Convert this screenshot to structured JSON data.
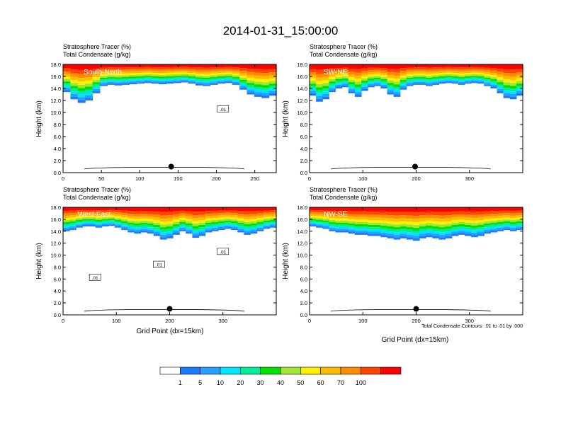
{
  "title": "2014-01-31_15:00:00",
  "colorbar": {
    "colors": [
      "#ffffff",
      "#1e78ff",
      "#28a0ff",
      "#00e5ff",
      "#00ee99",
      "#00e100",
      "#a0e632",
      "#fff000",
      "#fcbc00",
      "#ff8c00",
      "#ff4600",
      "#ff0000"
    ],
    "labels": [
      "1",
      "5",
      "10",
      "20",
      "30",
      "40",
      "50",
      "60",
      "70",
      "100"
    ]
  },
  "contour_note": "Total Condensate Contours: .01 to .01 by .000",
  "chart_data": [
    {
      "type": "heatmap",
      "id": "south-north",
      "header_line1": "Stratosphere Tracer   (%)",
      "header_line2": "Total Condensate   (g/kg)",
      "section_label": "South-North",
      "ylabel": "Height (km)",
      "xlabel": "",
      "xlim": [
        0,
        278
      ],
      "ylim": [
        0,
        18
      ],
      "xticks": [
        0,
        50,
        100,
        150,
        200,
        250
      ],
      "yticks": [
        "0.0",
        "2.0",
        "4.0",
        "6.0",
        "8.0",
        "10.0",
        "12.0",
        "14.0",
        "16.0",
        "18.0"
      ],
      "tracer_base_km": [
        13.4,
        12.2,
        11.6,
        12.0,
        13.2,
        14.4,
        14.6,
        14.5,
        14.6,
        14.7,
        14.8,
        14.9,
        14.8,
        14.7,
        14.8,
        14.9,
        15.0,
        14.8,
        14.5,
        14.4,
        14.6,
        14.8,
        14.9,
        14.6,
        13.8,
        13.0,
        12.6,
        12.4,
        12.8
      ],
      "contour_labels": [
        ".01"
      ],
      "marker": {
        "x": 141,
        "y": 1.0
      }
    },
    {
      "type": "heatmap",
      "id": "sw-ne",
      "header_line1": "Stratosphere Tracer   (%)",
      "header_line2": "Total Condensate   (g/kg)",
      "section_label": "SW-NE",
      "ylabel": "Height (km)",
      "xlabel": "",
      "xlim": [
        0,
        400
      ],
      "ylim": [
        0,
        18
      ],
      "xticks": [
        0,
        100,
        200,
        300
      ],
      "yticks": [
        "0.0",
        "2.0",
        "4.0",
        "6.0",
        "8.0",
        "10.0",
        "12.0",
        "14.0",
        "16.0",
        "18.0"
      ],
      "tracer_base_km": [
        12.8,
        11.8,
        12.2,
        13.4,
        14.0,
        14.2,
        13.2,
        12.6,
        13.6,
        14.2,
        14.4,
        14.0,
        13.0,
        12.6,
        13.8,
        14.4,
        14.6,
        14.6,
        14.4,
        14.6,
        14.8,
        14.9,
        14.8,
        14.6,
        14.8,
        14.9,
        14.8,
        14.4,
        14.0,
        13.2,
        12.4,
        12.2,
        12.8
      ],
      "contour_labels": [],
      "marker": {
        "x": 198,
        "y": 1.0
      }
    },
    {
      "type": "heatmap",
      "id": "west-east",
      "header_line1": "Stratosphere Tracer   (%)",
      "header_line2": "Total Condensate   (g/kg)",
      "section_label": "West-East",
      "ylabel": "Height (km)",
      "xlabel": "Grid Point (dx=15km)",
      "xlim": [
        0,
        400
      ],
      "ylim": [
        0,
        18
      ],
      "xticks": [
        0,
        100,
        200,
        300
      ],
      "yticks": [
        "0.0",
        "2.0",
        "4.0",
        "6.0",
        "8.0",
        "10.0",
        "12.0",
        "14.0",
        "16.0",
        "18.0"
      ],
      "tracer_base_km": [
        14.0,
        14.2,
        14.6,
        14.8,
        14.8,
        14.6,
        14.8,
        14.9,
        14.6,
        14.2,
        13.8,
        13.6,
        13.8,
        13.6,
        13.2,
        12.6,
        12.8,
        13.4,
        14.0,
        13.6,
        12.9,
        13.2,
        13.8,
        14.0,
        14.2,
        14.4,
        14.2,
        13.8,
        13.4,
        13.6,
        14.0,
        14.4,
        14.6
      ],
      "contour_labels": [
        ".01",
        ".01",
        ".01"
      ],
      "marker": {
        "x": 200,
        "y": 1.0
      }
    },
    {
      "type": "heatmap",
      "id": "nw-se",
      "header_line1": "Stratosphere Tracer   (%)",
      "header_line2": "Total Condensate   (g/kg)",
      "section_label": "NW-SE",
      "ylabel": "Height (km)",
      "xlabel": "Grid Point (dx=15km)",
      "xlim": [
        0,
        400
      ],
      "ylim": [
        0,
        18
      ],
      "xticks": [
        0,
        100,
        200,
        300
      ],
      "yticks": [
        "0.0",
        "2.0",
        "4.0",
        "6.0",
        "8.0",
        "10.0",
        "12.0",
        "14.0",
        "16.0",
        "18.0"
      ],
      "tracer_base_km": [
        14.8,
        14.6,
        14.4,
        14.0,
        13.8,
        13.8,
        13.6,
        13.4,
        13.4,
        13.2,
        13.2,
        13.0,
        12.8,
        12.6,
        12.8,
        12.6,
        12.4,
        12.8,
        13.0,
        12.8,
        12.6,
        12.8,
        13.2,
        13.4,
        13.2,
        13.0,
        13.2,
        13.6,
        13.8,
        14.0,
        14.2,
        14.0,
        14.2
      ],
      "contour_labels": [],
      "marker": {
        "x": 200,
        "y": 1.0
      }
    }
  ]
}
